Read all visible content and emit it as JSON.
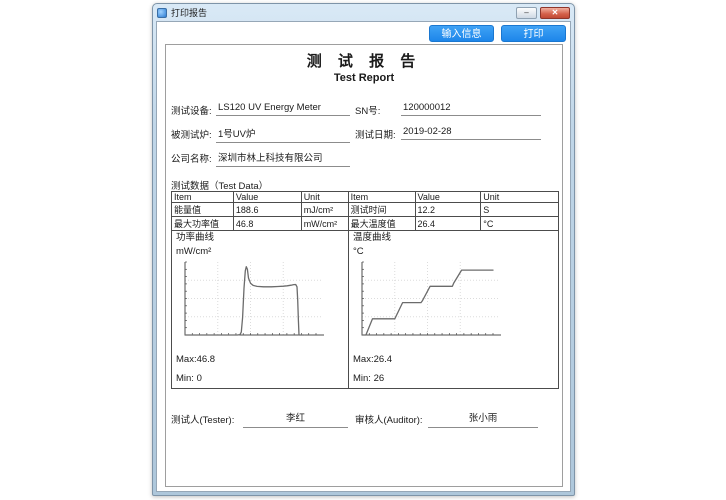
{
  "window": {
    "title": "打印报告",
    "icons": {
      "minimize_icon": "–",
      "close_icon": "✕"
    }
  },
  "toolbar": {
    "input_info_label": "输入信息",
    "print_label": "打印",
    "accent_color": "#2e97f2"
  },
  "report": {
    "title_cn": "测 试 报 告",
    "title_en": "Test Report",
    "fields": [
      {
        "label": "测试设备:",
        "value": "LS120 UV Energy Meter"
      },
      {
        "label": "SN号:",
        "value": "120000012"
      },
      {
        "label": "被测试炉:",
        "value": "1号UV炉"
      },
      {
        "label": "测试日期:",
        "value": "2019-02-28"
      },
      {
        "label": "公司名称:",
        "value": "深圳市林上科技有限公司"
      }
    ],
    "test_data_label": "测试数据（Test Data）",
    "table": {
      "headers": [
        "Item",
        "Value",
        "Unit",
        "Item",
        "Value",
        "Unit"
      ],
      "rows": [
        [
          "能量值",
          "188.6",
          "mJ/cm²",
          "测试时间",
          "12.2",
          "S"
        ],
        [
          "最大功率值",
          "46.8",
          "mW/cm²",
          "最大温度值",
          "26.4",
          "°C"
        ]
      ]
    },
    "signatures": [
      {
        "label": "测试人(Tester):",
        "value": "李红"
      },
      {
        "label": "审核人(Auditor):",
        "value": "张小雨"
      }
    ]
  },
  "chart_data": [
    {
      "type": "line",
      "title": "功率曲线",
      "ylabel": "mW/cm²",
      "xlabel": "",
      "max_label": "Max:46.8",
      "min_label": "Min: 0",
      "max_value": 46.8,
      "min_value": 0,
      "ylim": [
        0,
        50
      ],
      "xlim": [
        0,
        100
      ],
      "grid": true,
      "line_color": "#6b6b6b",
      "points": [
        [
          0,
          0
        ],
        [
          40,
          0
        ],
        [
          42,
          0.3
        ],
        [
          43,
          2
        ],
        [
          44,
          12
        ],
        [
          45,
          32
        ],
        [
          46,
          44
        ],
        [
          46.8,
          46.8
        ],
        [
          47.6,
          45
        ],
        [
          48.5,
          39
        ],
        [
          50,
          35.5
        ],
        [
          52,
          34
        ],
        [
          55,
          33.3
        ],
        [
          60,
          33
        ],
        [
          66,
          33
        ],
        [
          71,
          33.2
        ],
        [
          75,
          33.4
        ],
        [
          78,
          33.7
        ],
        [
          81,
          34.1
        ],
        [
          83,
          34.5
        ],
        [
          84.5,
          34.6
        ],
        [
          85.5,
          33
        ],
        [
          86,
          24
        ],
        [
          86.6,
          10
        ],
        [
          87,
          0
        ],
        [
          91,
          0
        ]
      ]
    },
    {
      "type": "line",
      "title": "温度曲线",
      "ylabel": "°C",
      "xlabel": "",
      "max_label": "Max:26.4",
      "min_label": "Min: 26",
      "max_value": 26.4,
      "min_value": 26,
      "ylim": [
        26,
        26.45
      ],
      "xlim": [
        0,
        100
      ],
      "grid": true,
      "line_color": "#6b6b6b",
      "points": [
        [
          0,
          26
        ],
        [
          3,
          26
        ],
        [
          8,
          26.1
        ],
        [
          25,
          26.1
        ],
        [
          31,
          26.2
        ],
        [
          45,
          26.2
        ],
        [
          46,
          26.21
        ],
        [
          52,
          26.3
        ],
        [
          69,
          26.3
        ],
        [
          70,
          26.32
        ],
        [
          76,
          26.4
        ],
        [
          100,
          26.4
        ]
      ]
    }
  ]
}
